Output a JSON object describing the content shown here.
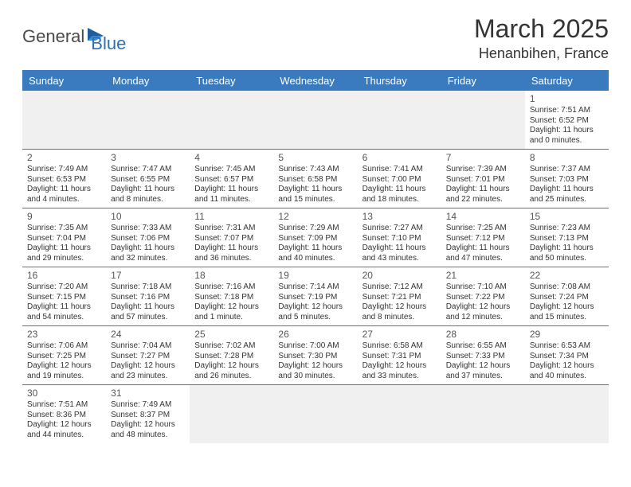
{
  "logo": {
    "part1": "General",
    "part2": "Blue"
  },
  "header": {
    "month_title": "March 2025",
    "location": "Henanbihen, France"
  },
  "colors": {
    "header_bg": "#3a7bbf",
    "header_text": "#ffffff",
    "grid_line": "#3a7bbf",
    "blank_bg": "#f0f0f0",
    "body_text": "#333333",
    "logo_gray": "#4a4a4a",
    "logo_blue": "#2f6fb0"
  },
  "days_of_week": [
    "Sunday",
    "Monday",
    "Tuesday",
    "Wednesday",
    "Thursday",
    "Friday",
    "Saturday"
  ],
  "weeks": [
    [
      {
        "blank": true
      },
      {
        "blank": true
      },
      {
        "blank": true
      },
      {
        "blank": true
      },
      {
        "blank": true
      },
      {
        "blank": true
      },
      {
        "n": "1",
        "sr": "Sunrise: 7:51 AM",
        "ss": "Sunset: 6:52 PM",
        "d1": "Daylight: 11 hours",
        "d2": "and 0 minutes."
      }
    ],
    [
      {
        "n": "2",
        "sr": "Sunrise: 7:49 AM",
        "ss": "Sunset: 6:53 PM",
        "d1": "Daylight: 11 hours",
        "d2": "and 4 minutes."
      },
      {
        "n": "3",
        "sr": "Sunrise: 7:47 AM",
        "ss": "Sunset: 6:55 PM",
        "d1": "Daylight: 11 hours",
        "d2": "and 8 minutes."
      },
      {
        "n": "4",
        "sr": "Sunrise: 7:45 AM",
        "ss": "Sunset: 6:57 PM",
        "d1": "Daylight: 11 hours",
        "d2": "and 11 minutes."
      },
      {
        "n": "5",
        "sr": "Sunrise: 7:43 AM",
        "ss": "Sunset: 6:58 PM",
        "d1": "Daylight: 11 hours",
        "d2": "and 15 minutes."
      },
      {
        "n": "6",
        "sr": "Sunrise: 7:41 AM",
        "ss": "Sunset: 7:00 PM",
        "d1": "Daylight: 11 hours",
        "d2": "and 18 minutes."
      },
      {
        "n": "7",
        "sr": "Sunrise: 7:39 AM",
        "ss": "Sunset: 7:01 PM",
        "d1": "Daylight: 11 hours",
        "d2": "and 22 minutes."
      },
      {
        "n": "8",
        "sr": "Sunrise: 7:37 AM",
        "ss": "Sunset: 7:03 PM",
        "d1": "Daylight: 11 hours",
        "d2": "and 25 minutes."
      }
    ],
    [
      {
        "n": "9",
        "sr": "Sunrise: 7:35 AM",
        "ss": "Sunset: 7:04 PM",
        "d1": "Daylight: 11 hours",
        "d2": "and 29 minutes."
      },
      {
        "n": "10",
        "sr": "Sunrise: 7:33 AM",
        "ss": "Sunset: 7:06 PM",
        "d1": "Daylight: 11 hours",
        "d2": "and 32 minutes."
      },
      {
        "n": "11",
        "sr": "Sunrise: 7:31 AM",
        "ss": "Sunset: 7:07 PM",
        "d1": "Daylight: 11 hours",
        "d2": "and 36 minutes."
      },
      {
        "n": "12",
        "sr": "Sunrise: 7:29 AM",
        "ss": "Sunset: 7:09 PM",
        "d1": "Daylight: 11 hours",
        "d2": "and 40 minutes."
      },
      {
        "n": "13",
        "sr": "Sunrise: 7:27 AM",
        "ss": "Sunset: 7:10 PM",
        "d1": "Daylight: 11 hours",
        "d2": "and 43 minutes."
      },
      {
        "n": "14",
        "sr": "Sunrise: 7:25 AM",
        "ss": "Sunset: 7:12 PM",
        "d1": "Daylight: 11 hours",
        "d2": "and 47 minutes."
      },
      {
        "n": "15",
        "sr": "Sunrise: 7:23 AM",
        "ss": "Sunset: 7:13 PM",
        "d1": "Daylight: 11 hours",
        "d2": "and 50 minutes."
      }
    ],
    [
      {
        "n": "16",
        "sr": "Sunrise: 7:20 AM",
        "ss": "Sunset: 7:15 PM",
        "d1": "Daylight: 11 hours",
        "d2": "and 54 minutes."
      },
      {
        "n": "17",
        "sr": "Sunrise: 7:18 AM",
        "ss": "Sunset: 7:16 PM",
        "d1": "Daylight: 11 hours",
        "d2": "and 57 minutes."
      },
      {
        "n": "18",
        "sr": "Sunrise: 7:16 AM",
        "ss": "Sunset: 7:18 PM",
        "d1": "Daylight: 12 hours",
        "d2": "and 1 minute."
      },
      {
        "n": "19",
        "sr": "Sunrise: 7:14 AM",
        "ss": "Sunset: 7:19 PM",
        "d1": "Daylight: 12 hours",
        "d2": "and 5 minutes."
      },
      {
        "n": "20",
        "sr": "Sunrise: 7:12 AM",
        "ss": "Sunset: 7:21 PM",
        "d1": "Daylight: 12 hours",
        "d2": "and 8 minutes."
      },
      {
        "n": "21",
        "sr": "Sunrise: 7:10 AM",
        "ss": "Sunset: 7:22 PM",
        "d1": "Daylight: 12 hours",
        "d2": "and 12 minutes."
      },
      {
        "n": "22",
        "sr": "Sunrise: 7:08 AM",
        "ss": "Sunset: 7:24 PM",
        "d1": "Daylight: 12 hours",
        "d2": "and 15 minutes."
      }
    ],
    [
      {
        "n": "23",
        "sr": "Sunrise: 7:06 AM",
        "ss": "Sunset: 7:25 PM",
        "d1": "Daylight: 12 hours",
        "d2": "and 19 minutes."
      },
      {
        "n": "24",
        "sr": "Sunrise: 7:04 AM",
        "ss": "Sunset: 7:27 PM",
        "d1": "Daylight: 12 hours",
        "d2": "and 23 minutes."
      },
      {
        "n": "25",
        "sr": "Sunrise: 7:02 AM",
        "ss": "Sunset: 7:28 PM",
        "d1": "Daylight: 12 hours",
        "d2": "and 26 minutes."
      },
      {
        "n": "26",
        "sr": "Sunrise: 7:00 AM",
        "ss": "Sunset: 7:30 PM",
        "d1": "Daylight: 12 hours",
        "d2": "and 30 minutes."
      },
      {
        "n": "27",
        "sr": "Sunrise: 6:58 AM",
        "ss": "Sunset: 7:31 PM",
        "d1": "Daylight: 12 hours",
        "d2": "and 33 minutes."
      },
      {
        "n": "28",
        "sr": "Sunrise: 6:55 AM",
        "ss": "Sunset: 7:33 PM",
        "d1": "Daylight: 12 hours",
        "d2": "and 37 minutes."
      },
      {
        "n": "29",
        "sr": "Sunrise: 6:53 AM",
        "ss": "Sunset: 7:34 PM",
        "d1": "Daylight: 12 hours",
        "d2": "and 40 minutes."
      }
    ],
    [
      {
        "n": "30",
        "sr": "Sunrise: 7:51 AM",
        "ss": "Sunset: 8:36 PM",
        "d1": "Daylight: 12 hours",
        "d2": "and 44 minutes."
      },
      {
        "n": "31",
        "sr": "Sunrise: 7:49 AM",
        "ss": "Sunset: 8:37 PM",
        "d1": "Daylight: 12 hours",
        "d2": "and 48 minutes."
      },
      {
        "blank": true
      },
      {
        "blank": true
      },
      {
        "blank": true
      },
      {
        "blank": true
      },
      {
        "blank": true
      }
    ]
  ]
}
